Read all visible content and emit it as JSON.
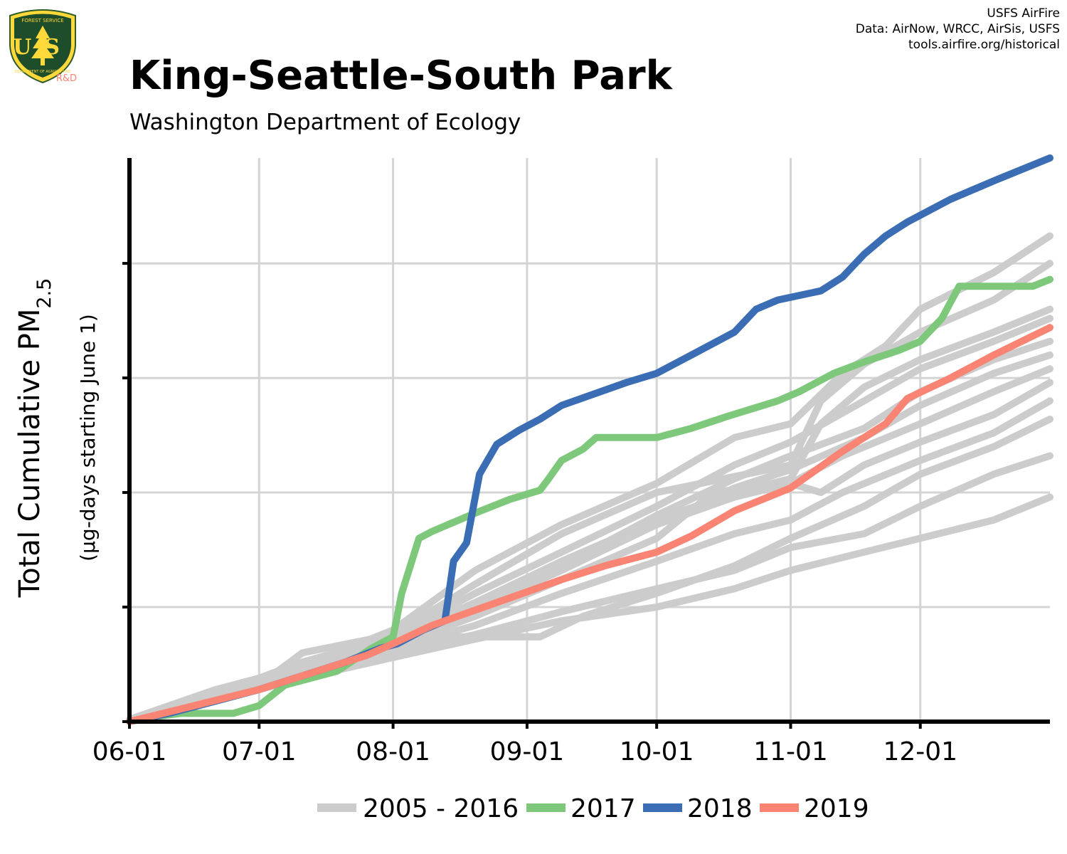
{
  "header": {
    "title": "King-Seattle-South Park",
    "subtitle": "Washington Department of Ecology",
    "credits": [
      "USFS AirFire",
      "Data: AirNow, WRCC, AirSis, USFS",
      "tools.airfire.org/historical"
    ],
    "logo": {
      "top_text": "FOREST SERVICE",
      "letters": "US",
      "bottom_text": "DEPARTMENT OF AGRICULTURE",
      "tag": "R&D"
    }
  },
  "colors": {
    "historical": "#cccccc",
    "y2017": "#7dc87a",
    "y2018": "#3a6db4",
    "y2019": "#f98473",
    "grid": "#d4d4d4",
    "axis": "#000000"
  },
  "chart_data": {
    "type": "line",
    "ylabel": "Total Cumulative PM",
    "ylabel_sub": "2.5",
    "ylabel2": "(µg-days starting June 1)",
    "xlim": [
      0,
      213
    ],
    "ylim": [
      0,
      1230
    ],
    "x_ticks": [
      {
        "label": "06-01",
        "day": 0
      },
      {
        "label": "07-01",
        "day": 30
      },
      {
        "label": "08-01",
        "day": 61
      },
      {
        "label": "09-01",
        "day": 92
      },
      {
        "label": "10-01",
        "day": 122
      },
      {
        "label": "11-01",
        "day": 153
      },
      {
        "label": "12-01",
        "day": 183
      }
    ],
    "y_ticks": [
      0,
      250,
      500,
      750,
      1000
    ],
    "legend": [
      "2005 - 2016",
      "2017",
      "2018",
      "2019"
    ],
    "legend_position": "bottom",
    "series_2017": {
      "name": "2017",
      "points": [
        [
          0,
          0
        ],
        [
          5,
          10
        ],
        [
          12,
          18
        ],
        [
          24,
          18
        ],
        [
          30,
          35
        ],
        [
          36,
          80
        ],
        [
          48,
          110
        ],
        [
          56,
          160
        ],
        [
          61,
          185
        ],
        [
          63,
          280
        ],
        [
          67,
          400
        ],
        [
          70,
          415
        ],
        [
          80,
          455
        ],
        [
          88,
          485
        ],
        [
          95,
          505
        ],
        [
          97,
          530
        ],
        [
          100,
          570
        ],
        [
          105,
          595
        ],
        [
          108,
          620
        ],
        [
          122,
          620
        ],
        [
          130,
          640
        ],
        [
          138,
          665
        ],
        [
          150,
          700
        ],
        [
          155,
          720
        ],
        [
          163,
          760
        ],
        [
          170,
          785
        ],
        [
          178,
          810
        ],
        [
          183,
          830
        ],
        [
          188,
          880
        ],
        [
          192,
          950
        ],
        [
          197,
          950
        ],
        [
          209,
          950
        ],
        [
          213,
          965
        ]
      ]
    },
    "series_2018": {
      "name": "2018",
      "points": [
        [
          0,
          0
        ],
        [
          10,
          20
        ],
        [
          20,
          45
        ],
        [
          30,
          70
        ],
        [
          40,
          100
        ],
        [
          50,
          130
        ],
        [
          58,
          160
        ],
        [
          62,
          170
        ],
        [
          68,
          200
        ],
        [
          73,
          220
        ],
        [
          75,
          350
        ],
        [
          78,
          390
        ],
        [
          81,
          540
        ],
        [
          85,
          605
        ],
        [
          90,
          635
        ],
        [
          95,
          660
        ],
        [
          100,
          690
        ],
        [
          115,
          740
        ],
        [
          122,
          760
        ],
        [
          130,
          800
        ],
        [
          140,
          850
        ],
        [
          145,
          900
        ],
        [
          150,
          920
        ],
        [
          160,
          940
        ],
        [
          165,
          970
        ],
        [
          170,
          1020
        ],
        [
          175,
          1060
        ],
        [
          180,
          1090
        ],
        [
          190,
          1140
        ],
        [
          200,
          1180
        ],
        [
          213,
          1230
        ]
      ]
    },
    "series_2019": {
      "name": "2019",
      "points": [
        [
          0,
          0
        ],
        [
          15,
          35
        ],
        [
          30,
          70
        ],
        [
          45,
          115
        ],
        [
          55,
          145
        ],
        [
          61,
          170
        ],
        [
          70,
          210
        ],
        [
          85,
          260
        ],
        [
          100,
          310
        ],
        [
          110,
          340
        ],
        [
          122,
          370
        ],
        [
          130,
          405
        ],
        [
          140,
          460
        ],
        [
          153,
          510
        ],
        [
          165,
          590
        ],
        [
          175,
          650
        ],
        [
          180,
          705
        ],
        [
          190,
          750
        ],
        [
          200,
          800
        ],
        [
          213,
          860
        ]
      ]
    },
    "historical_series": [
      {
        "points": [
          [
            0,
            0
          ],
          [
            15,
            50
          ],
          [
            30,
            80
          ],
          [
            40,
            150
          ],
          [
            61,
            190
          ],
          [
            80,
            300
          ],
          [
            100,
            410
          ],
          [
            122,
            500
          ],
          [
            153,
            560
          ],
          [
            160,
            700
          ],
          [
            170,
            780
          ],
          [
            183,
            850
          ],
          [
            200,
            920
          ],
          [
            213,
            1000
          ]
        ]
      },
      {
        "points": [
          [
            0,
            5
          ],
          [
            20,
            70
          ],
          [
            40,
            120
          ],
          [
            61,
            200
          ],
          [
            80,
            330
          ],
          [
            100,
            430
          ],
          [
            122,
            520
          ],
          [
            140,
            620
          ],
          [
            153,
            650
          ],
          [
            165,
            760
          ],
          [
            175,
            820
          ],
          [
            183,
            900
          ],
          [
            200,
            980
          ],
          [
            213,
            1060
          ]
        ]
      },
      {
        "points": [
          [
            0,
            0
          ],
          [
            20,
            60
          ],
          [
            40,
            130
          ],
          [
            61,
            185
          ],
          [
            80,
            280
          ],
          [
            100,
            370
          ],
          [
            122,
            470
          ],
          [
            140,
            560
          ],
          [
            153,
            610
          ],
          [
            170,
            700
          ],
          [
            183,
            770
          ],
          [
            200,
            830
          ],
          [
            213,
            880
          ]
        ]
      },
      {
        "points": [
          [
            0,
            0
          ],
          [
            20,
            55
          ],
          [
            40,
            110
          ],
          [
            61,
            150
          ],
          [
            75,
            185
          ],
          [
            95,
            185
          ],
          [
            105,
            230
          ],
          [
            122,
            280
          ],
          [
            140,
            340
          ],
          [
            153,
            400
          ],
          [
            170,
            470
          ],
          [
            183,
            540
          ],
          [
            200,
            600
          ],
          [
            213,
            660
          ]
        ]
      },
      {
        "points": [
          [
            0,
            0
          ],
          [
            20,
            60
          ],
          [
            40,
            110
          ],
          [
            61,
            160
          ],
          [
            80,
            210
          ],
          [
            100,
            280
          ],
          [
            122,
            350
          ],
          [
            140,
            410
          ],
          [
            153,
            440
          ],
          [
            165,
            500
          ],
          [
            183,
            570
          ],
          [
            200,
            630
          ],
          [
            213,
            700
          ]
        ]
      },
      {
        "points": [
          [
            0,
            0
          ],
          [
            20,
            50
          ],
          [
            40,
            100
          ],
          [
            61,
            150
          ],
          [
            80,
            190
          ],
          [
            100,
            240
          ],
          [
            122,
            290
          ],
          [
            140,
            330
          ],
          [
            153,
            380
          ],
          [
            170,
            410
          ],
          [
            183,
            470
          ],
          [
            200,
            540
          ],
          [
            213,
            580
          ]
        ]
      },
      {
        "points": [
          [
            0,
            0
          ],
          [
            20,
            45
          ],
          [
            40,
            95
          ],
          [
            61,
            140
          ],
          [
            80,
            180
          ],
          [
            100,
            220
          ],
          [
            122,
            250
          ],
          [
            140,
            290
          ],
          [
            153,
            330
          ],
          [
            170,
            370
          ],
          [
            183,
            400
          ],
          [
            200,
            440
          ],
          [
            213,
            490
          ]
        ]
      },
      {
        "points": [
          [
            0,
            0
          ],
          [
            20,
            60
          ],
          [
            40,
            120
          ],
          [
            61,
            175
          ],
          [
            80,
            250
          ],
          [
            100,
            340
          ],
          [
            122,
            450
          ],
          [
            140,
            530
          ],
          [
            153,
            580
          ],
          [
            170,
            640
          ],
          [
            183,
            720
          ],
          [
            200,
            790
          ],
          [
            213,
            830
          ]
        ]
      },
      {
        "points": [
          [
            0,
            0
          ],
          [
            20,
            55
          ],
          [
            40,
            115
          ],
          [
            61,
            170
          ],
          [
            80,
            245
          ],
          [
            100,
            330
          ],
          [
            122,
            430
          ],
          [
            140,
            510
          ],
          [
            153,
            550
          ],
          [
            170,
            620
          ],
          [
            183,
            690
          ],
          [
            200,
            760
          ],
          [
            213,
            800
          ]
        ]
      },
      {
        "points": [
          [
            0,
            5
          ],
          [
            20,
            60
          ],
          [
            40,
            125
          ],
          [
            61,
            180
          ],
          [
            80,
            260
          ],
          [
            100,
            350
          ],
          [
            122,
            440
          ],
          [
            140,
            500
          ],
          [
            153,
            530
          ],
          [
            160,
            650
          ],
          [
            170,
            730
          ],
          [
            183,
            790
          ],
          [
            200,
            850
          ],
          [
            213,
            900
          ]
        ]
      },
      {
        "points": [
          [
            0,
            0
          ],
          [
            20,
            65
          ],
          [
            40,
            125
          ],
          [
            61,
            175
          ],
          [
            80,
            255
          ],
          [
            100,
            345
          ],
          [
            122,
            430
          ],
          [
            140,
            490
          ],
          [
            153,
            520
          ],
          [
            165,
            580
          ],
          [
            183,
            650
          ],
          [
            200,
            720
          ],
          [
            213,
            770
          ]
        ]
      },
      {
        "points": [
          [
            0,
            0
          ],
          [
            20,
            55
          ],
          [
            40,
            110
          ],
          [
            61,
            165
          ],
          [
            80,
            230
          ],
          [
            100,
            310
          ],
          [
            122,
            400
          ],
          [
            135,
            500
          ],
          [
            150,
            520
          ],
          [
            153,
            520
          ],
          [
            160,
            500
          ],
          [
            170,
            560
          ],
          [
            183,
            610
          ],
          [
            200,
            670
          ],
          [
            213,
            740
          ]
        ]
      }
    ]
  }
}
